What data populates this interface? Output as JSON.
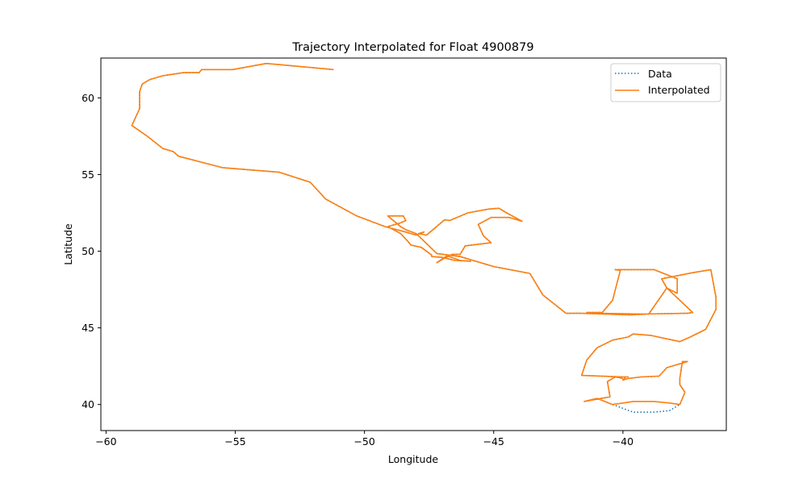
{
  "chart_data": {
    "type": "line",
    "title": "Trajectory Interpolated for Float 4900879",
    "xlabel": "Longitude",
    "ylabel": "Latitude",
    "xlim": [
      -60.2,
      -36.0
    ],
    "ylim": [
      38.3,
      62.6
    ],
    "xticks": [
      -60,
      -55,
      -50,
      -45,
      -40
    ],
    "xtick_labels": [
      "−60",
      "−55",
      "−50",
      "−45",
      "−40"
    ],
    "yticks": [
      40,
      45,
      50,
      55,
      60
    ],
    "ytick_labels": [
      "40",
      "45",
      "50",
      "55",
      "60"
    ],
    "grid": false,
    "legend": "top-right",
    "series": [
      {
        "name": "Data",
        "color": "#1f77b4",
        "style": "dotted",
        "x": [
          -51.2,
          -53.8,
          -55.1,
          -56.3,
          -56.4,
          -57.0,
          -57.8,
          -58.3,
          -58.6,
          -58.7,
          -58.7,
          -59.0,
          -58.4,
          -57.8,
          -57.4,
          -57.2,
          -55.5,
          -53.3,
          -52.1,
          -51.5,
          -50.3,
          -49.2,
          -48.4,
          -48.0,
          -47.7,
          -47.9,
          -47.6,
          -46.9,
          -46.7,
          -46.0,
          -45.2,
          -44.8,
          -44.5,
          -43.9,
          -44.4,
          -45.1,
          -45.6,
          -45.4,
          -45.1,
          -46.1,
          -46.3,
          -46.6,
          -46.9,
          -47.2,
          -46.9,
          -46.8,
          -46.3,
          -45.9,
          -46.5,
          -47.0,
          -47.4,
          -47.4,
          -47.8,
          -48.2,
          -48.3,
          -48.6,
          -49.1,
          -48.6,
          -48.4,
          -48.5,
          -48.9,
          -49.1,
          -48.6,
          -48.4,
          -48.0,
          -47.2,
          -46.3,
          -45.0,
          -43.6,
          -43.1,
          -42.2,
          -41.6,
          -39.7,
          -39.0,
          -38.3,
          -37.9,
          -37.9,
          -38.8,
          -40.3,
          -40.1,
          -40.4,
          -40.8,
          -41.4,
          -40.9,
          -39.2,
          -37.6,
          -37.5,
          -37.3,
          -38.3,
          -38.5,
          -37.3,
          -36.6,
          -36.6,
          -36.4,
          -36.4,
          -36.8,
          -37.4,
          -37.8,
          -38.9,
          -39.6,
          -39.8,
          -40.4,
          -41.0,
          -41.4,
          -41.6,
          -40.0,
          -39.8,
          -39.9,
          -40.0,
          -39.8,
          -39.3,
          -38.6,
          -38.3,
          -37.5,
          -37.7,
          -37.8,
          -37.8,
          -37.6,
          -37.8,
          -38.2,
          -38.8,
          -39.6,
          -40.4,
          -41.0,
          -41.5,
          -40.5,
          -40.6,
          -40.3,
          -40.0
        ],
        "y": [
          61.85,
          62.25,
          61.85,
          61.85,
          61.65,
          61.65,
          61.45,
          61.2,
          60.9,
          60.4,
          59.3,
          58.2,
          57.5,
          56.7,
          56.5,
          56.2,
          55.45,
          55.15,
          54.5,
          53.4,
          52.3,
          51.6,
          51.25,
          51.05,
          51.25,
          51.15,
          51.05,
          52.05,
          52.0,
          52.5,
          52.75,
          52.8,
          52.5,
          51.95,
          52.2,
          52.2,
          51.75,
          51.0,
          50.55,
          50.35,
          49.8,
          49.8,
          49.55,
          49.25,
          49.6,
          49.7,
          49.4,
          49.35,
          49.4,
          49.6,
          49.65,
          49.75,
          50.25,
          50.4,
          50.6,
          51.15,
          51.6,
          51.85,
          52.0,
          52.3,
          52.3,
          52.3,
          51.6,
          51.4,
          51.15,
          49.85,
          49.65,
          49.0,
          48.55,
          47.15,
          45.95,
          45.95,
          45.85,
          45.9,
          47.6,
          47.25,
          48.2,
          48.8,
          48.8,
          48.75,
          46.8,
          46.0,
          46.0,
          45.95,
          45.9,
          45.95,
          45.95,
          46.0,
          47.6,
          48.2,
          48.6,
          48.8,
          48.8,
          47.0,
          46.2,
          44.9,
          44.4,
          44.1,
          44.5,
          44.6,
          44.4,
          44.2,
          43.7,
          42.9,
          41.9,
          41.8,
          41.8,
          41.8,
          41.6,
          41.7,
          41.8,
          41.85,
          42.4,
          42.8,
          42.8,
          41.7,
          41.3,
          40.8,
          40.0,
          39.6,
          39.5,
          39.5,
          40.0,
          40.4,
          40.2,
          40.5,
          41.5,
          41.8,
          41.7
        ]
      },
      {
        "name": "Interpolated",
        "color": "#ff7f0e",
        "style": "solid",
        "x": [
          -51.2,
          -53.8,
          -55.1,
          -56.3,
          -56.4,
          -57.0,
          -57.8,
          -58.3,
          -58.6,
          -58.7,
          -58.7,
          -59.0,
          -58.4,
          -57.8,
          -57.4,
          -57.2,
          -55.5,
          -53.3,
          -52.1,
          -51.5,
          -50.3,
          -49.2,
          -48.4,
          -48.0,
          -47.7,
          -47.9,
          -47.6,
          -46.9,
          -46.7,
          -46.0,
          -45.2,
          -44.8,
          -44.5,
          -43.9,
          -44.4,
          -45.1,
          -45.6,
          -45.4,
          -45.1,
          -46.1,
          -46.3,
          -46.6,
          -46.9,
          -47.2,
          -46.9,
          -46.8,
          -46.3,
          -45.9,
          -46.5,
          -47.0,
          -47.4,
          -47.4,
          -47.8,
          -48.2,
          -48.3,
          -48.6,
          -49.1,
          -48.6,
          -48.4,
          -48.5,
          -48.9,
          -49.1,
          -48.6,
          -48.4,
          -48.0,
          -47.2,
          -46.3,
          -45.0,
          -43.6,
          -43.1,
          -42.2,
          -41.6,
          -39.7,
          -39.0,
          -38.3,
          -37.9,
          -37.9,
          -38.8,
          -40.3,
          -40.1,
          -40.4,
          -40.8,
          -41.4,
          -40.9,
          -39.2,
          -37.6,
          -37.5,
          -37.3,
          -38.3,
          -38.5,
          -37.3,
          -36.6,
          -36.6,
          -36.4,
          -36.4,
          -36.8,
          -37.4,
          -37.8,
          -38.9,
          -39.6,
          -39.8,
          -40.4,
          -41.0,
          -41.4,
          -41.6,
          -40.0,
          -39.8,
          -39.9,
          -40.0,
          -39.8,
          -39.3,
          -38.6,
          -38.3,
          -37.5,
          -37.7,
          -37.8,
          -37.8,
          -37.6,
          -37.8,
          -38.2,
          -38.8,
          -39.6,
          -40.4,
          -41.0,
          -41.5,
          -40.5,
          -40.6,
          -40.3,
          -40.0
        ],
        "y": [
          61.85,
          62.25,
          61.85,
          61.85,
          61.65,
          61.65,
          61.45,
          61.2,
          60.9,
          60.4,
          59.3,
          58.2,
          57.5,
          56.7,
          56.5,
          56.2,
          55.45,
          55.15,
          54.5,
          53.4,
          52.3,
          51.6,
          51.25,
          51.05,
          51.25,
          51.15,
          51.05,
          52.05,
          52.0,
          52.5,
          52.75,
          52.8,
          52.5,
          51.95,
          52.2,
          52.2,
          51.75,
          51.0,
          50.55,
          50.35,
          49.8,
          49.8,
          49.55,
          49.25,
          49.6,
          49.7,
          49.4,
          49.35,
          49.4,
          49.6,
          49.65,
          49.75,
          50.25,
          50.4,
          50.6,
          51.15,
          51.6,
          51.85,
          52.0,
          52.3,
          52.3,
          52.3,
          51.6,
          51.4,
          51.15,
          49.85,
          49.65,
          49.0,
          48.55,
          47.15,
          45.95,
          45.95,
          45.85,
          45.9,
          47.6,
          47.25,
          48.2,
          48.8,
          48.8,
          48.75,
          46.8,
          46.0,
          46.0,
          45.95,
          45.9,
          45.95,
          45.95,
          46.0,
          47.6,
          48.2,
          48.6,
          48.8,
          48.8,
          47.0,
          46.2,
          44.9,
          44.4,
          44.1,
          44.5,
          44.6,
          44.4,
          44.2,
          43.7,
          42.9,
          41.9,
          41.8,
          41.8,
          41.8,
          41.6,
          41.7,
          41.8,
          41.85,
          42.4,
          42.8,
          42.8,
          41.7,
          41.3,
          40.8,
          40.0,
          40.1,
          40.2,
          40.2,
          40.0,
          40.4,
          40.2,
          40.5,
          41.5,
          41.8,
          41.7
        ]
      }
    ]
  }
}
